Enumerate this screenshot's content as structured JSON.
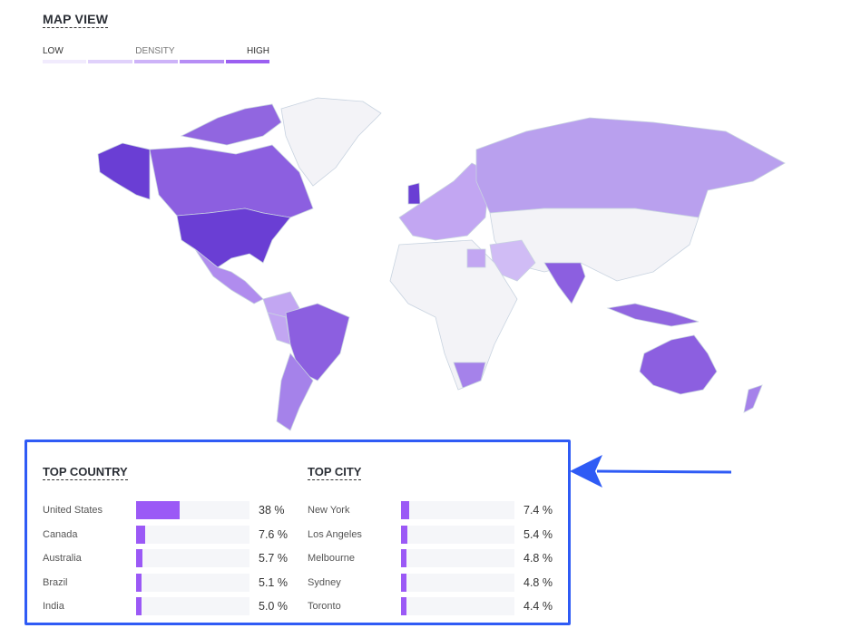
{
  "map_view": {
    "title": "MAP VIEW",
    "legend": {
      "low": "LOW",
      "mid": "DENSITY",
      "high": "HIGH",
      "colors": [
        "#f1ebfd",
        "#e0d1fb",
        "#cdb3f8",
        "#b68df5",
        "#9b5ff1"
      ]
    }
  },
  "top_country": {
    "title": "TOP COUNTRY",
    "rows": [
      {
        "name": "United States",
        "value": 38,
        "label": "38 %"
      },
      {
        "name": "Canada",
        "value": 7.6,
        "label": "7.6 %"
      },
      {
        "name": "Australia",
        "value": 5.7,
        "label": "5.7 %"
      },
      {
        "name": "Brazil",
        "value": 5.1,
        "label": "5.1 %"
      },
      {
        "name": "India",
        "value": 5.0,
        "label": "5.0 %"
      }
    ]
  },
  "top_city": {
    "title": "TOP CITY",
    "rows": [
      {
        "name": "New York",
        "value": 7.4,
        "label": "7.4 %"
      },
      {
        "name": "Los Angeles",
        "value": 5.4,
        "label": "5.4 %"
      },
      {
        "name": "Melbourne",
        "value": 4.8,
        "label": "4.8 %"
      },
      {
        "name": "Sydney",
        "value": 4.8,
        "label": "4.8 %"
      },
      {
        "name": "Toronto",
        "value": 4.4,
        "label": "4.4 %"
      }
    ]
  },
  "colors": {
    "bar": "#9b59f6",
    "highlight_box": "#2f5bf5",
    "arrow": "#2f5bf5"
  }
}
